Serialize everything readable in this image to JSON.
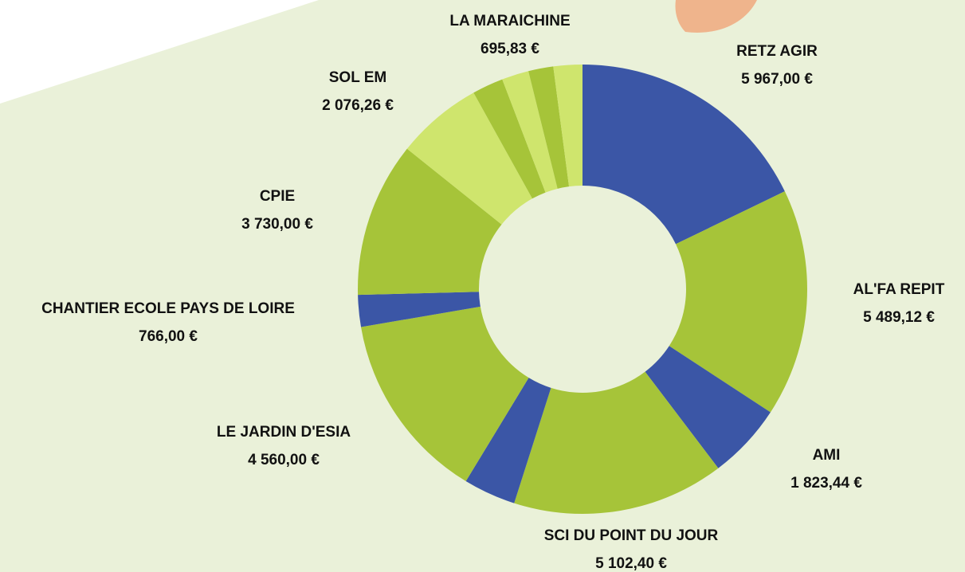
{
  "chart_data": {
    "type": "donut",
    "categories": [
      "RETZ  AGIR",
      "AL'FA REPIT",
      "AMI",
      "SCI DU POINT DU JOUR",
      null,
      "LE JARDIN D'ESIA",
      "CHANTIER ECOLE PAYS DE LOIRE",
      "CPIE",
      "SOL EM",
      null,
      null,
      null,
      "LA MARAICHINE"
    ],
    "values": [
      5967.0,
      5489.12,
      1823.44,
      5102.4,
      1260,
      4560.0,
      766.0,
      3730.0,
      2076.26,
      750,
      650,
      600,
      695.83
    ],
    "value_labels": [
      "5 967,00 €",
      "5 489,12 €",
      "1 823,44 €",
      "5 102,40 €",
      null,
      "4 560,00 €",
      "766,00 €",
      "3 730,00 €",
      "2 076,26 €",
      null,
      null,
      null,
      "695,83 €"
    ],
    "colors": [
      "#3b56a6",
      "#a6c439",
      "#3b56a6",
      "#a6c439",
      "#3b56a6",
      "#a6c439",
      "#3b56a6",
      "#a6c439",
      "#cfe56d",
      "#a6c439",
      "#cfe56d",
      "#a6c439",
      "#cfe56d"
    ]
  }
}
